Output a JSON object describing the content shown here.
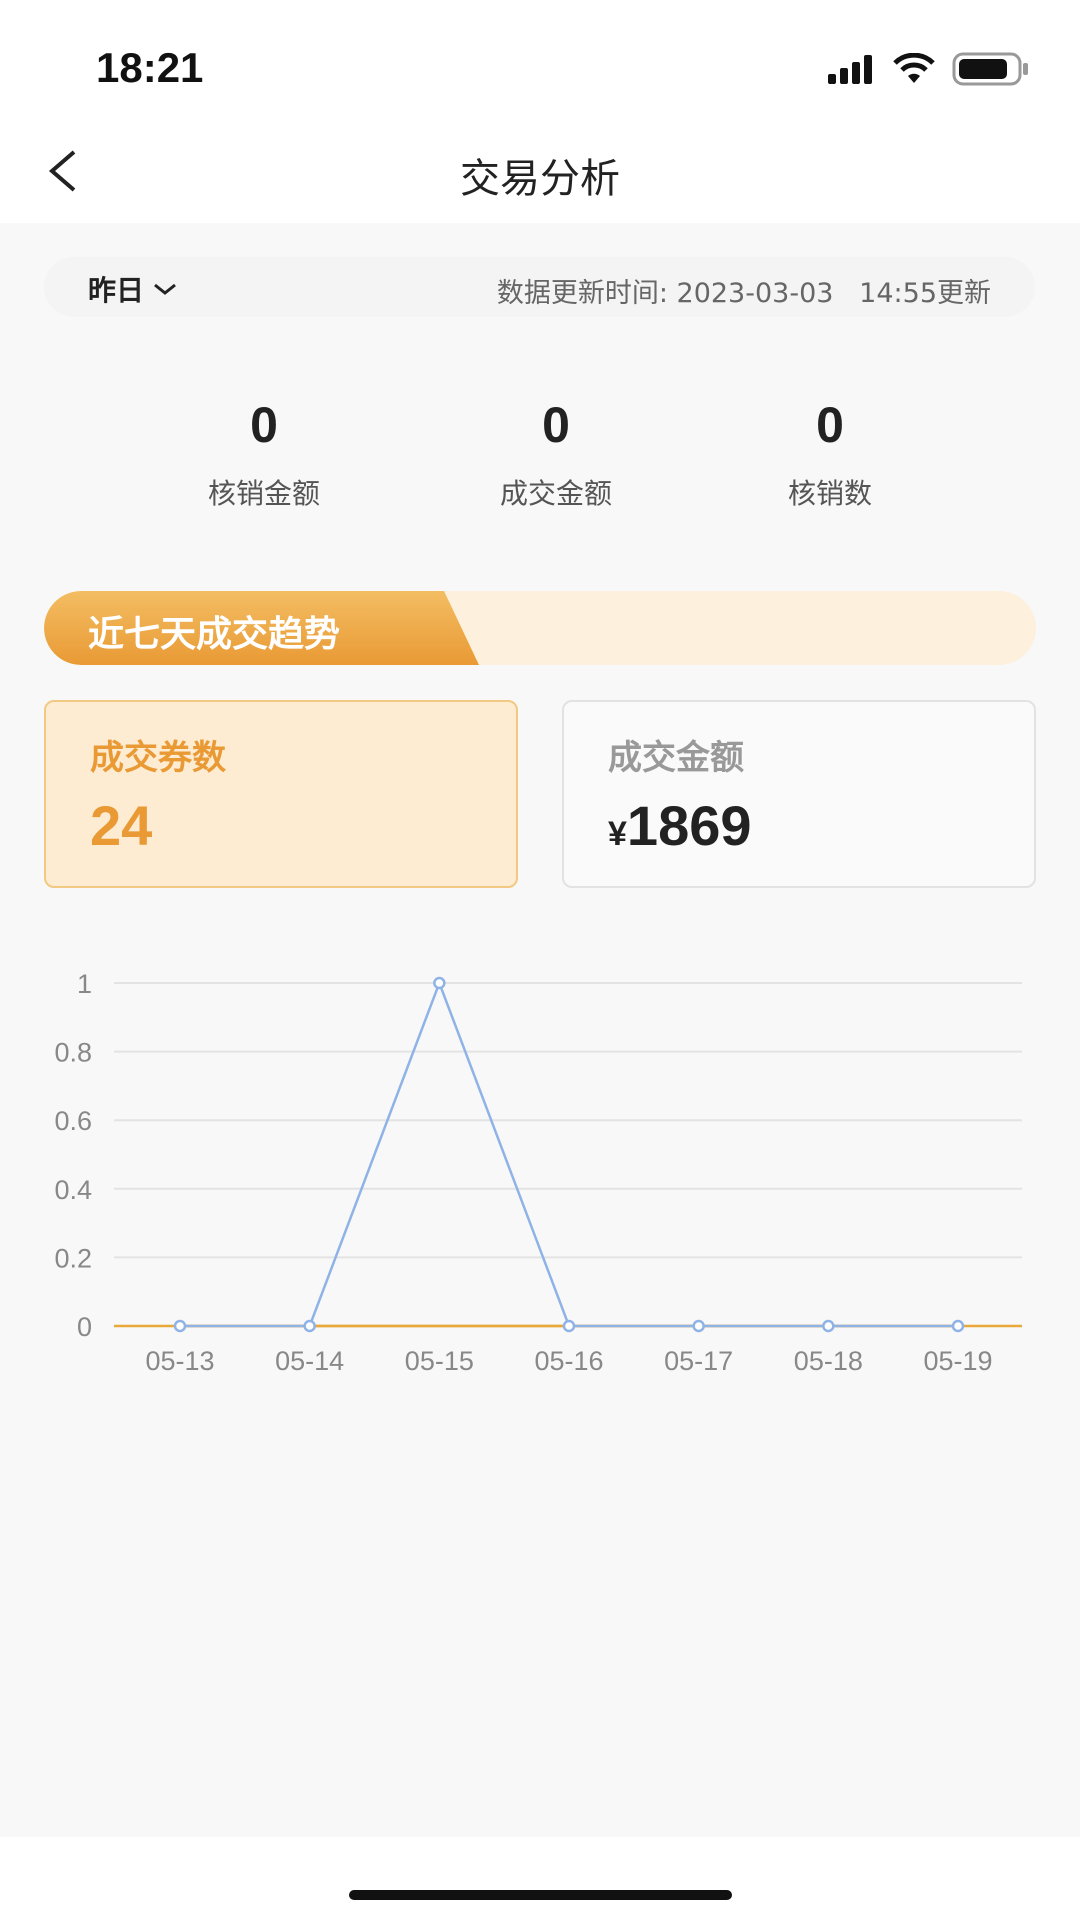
{
  "status_bar": {
    "time": "18:21",
    "icons": [
      "signal-icon",
      "wifi-icon",
      "battery-icon"
    ]
  },
  "nav": {
    "title": "交易分析",
    "back_icon": "chevron-left-icon"
  },
  "filter": {
    "period": "昨日",
    "updated": "数据更新时间: 2023-03-03   14:55更新"
  },
  "stats": [
    {
      "value": "0",
      "label": "核销金额"
    },
    {
      "value": "0",
      "label": "成交金额"
    },
    {
      "value": "0",
      "label": "核销数"
    }
  ],
  "trend": {
    "title": "近七天成交趋势"
  },
  "cards": [
    {
      "title": "成交券数",
      "value": "24"
    },
    {
      "title": "成交金额",
      "currency": "¥",
      "value": "1869"
    }
  ],
  "colors": {
    "accent": "#e99a35",
    "line_blue": "#8fb3e6",
    "line_orange": "#e8a93a"
  },
  "chart_data": {
    "type": "line",
    "categories": [
      "05-13",
      "05-14",
      "05-15",
      "05-16",
      "05-17",
      "05-18",
      "05-19"
    ],
    "series": [
      {
        "values": [
          0,
          0,
          1,
          0,
          0,
          0,
          0
        ],
        "color": "#8fb3e6"
      },
      {
        "values": [
          0,
          0,
          0,
          0,
          0,
          0,
          0
        ],
        "color": "#e8a93a"
      }
    ],
    "yticks": [
      "0",
      "0.2",
      "0.4",
      "0.6",
      "0.8",
      "1"
    ],
    "ylim": [
      0,
      1
    ],
    "grid": true
  }
}
